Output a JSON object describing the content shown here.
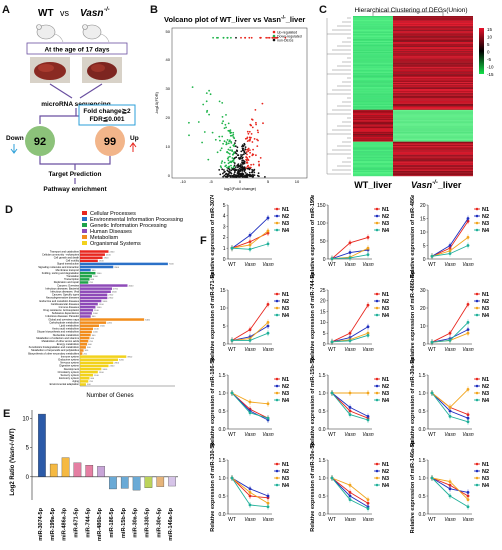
{
  "panels": {
    "A": {
      "label": "A",
      "group_wt": "WT",
      "vs": "vs",
      "group_ko": "Vasn",
      "group_ko_sup": "-/-",
      "age_text": "At the age of 17 days",
      "sequencing": "microRNA sequencing",
      "criteria_line1": "Fold change≧2",
      "criteria_line2": "FDR≦0.001",
      "down_label": "Down",
      "up_label": "Up",
      "down_count": "92",
      "up_count": "99",
      "target": "Target Prediction",
      "pathway": "Pathway enrichment"
    },
    "B": {
      "label": "B",
      "title": "Volcano plot of WT_liver vs Vasn",
      "title_sup": "-/-",
      "title_suffix": "_liver",
      "ylabel": "-log10(FDR)",
      "xlabel": "log2(Fold change)",
      "legend": [
        "Up-regulated",
        "Down-regulated",
        "non-DEGs"
      ],
      "xticks": [
        "-10",
        "-5",
        "0",
        "5",
        "10"
      ],
      "yticks": [
        "0",
        "10",
        "20",
        "30",
        "40",
        "50"
      ]
    },
    "C": {
      "label": "C",
      "title": "Hierarchical Clustering of DEGs(Union)",
      "xlabel_wt": "WT_liver",
      "xlabel_ko": "Vasn",
      "xlabel_ko_sup": "-/-",
      "xlabel_ko_suffix": "_liver",
      "scale": [
        "15",
        "10",
        "5",
        "0",
        "-5",
        "-10",
        "-15"
      ]
    },
    "D": {
      "label": "D",
      "xlabel": "Number of Genes",
      "legend": [
        {
          "name": "Cellular Processes",
          "color": "#e8261e"
        },
        {
          "name": "Environmental Information Processing",
          "color": "#2b71c8"
        },
        {
          "name": "Genetic Information Processing",
          "color": "#1fa34a"
        },
        {
          "name": "Human Diseases",
          "color": "#8e4bb8"
        },
        {
          "name": "Metabolism",
          "color": "#f28d1c"
        },
        {
          "name": "Organismal Systems",
          "color": "#f2d21c"
        }
      ]
    },
    "E": {
      "label": "E",
      "ylabel": "Log2 Ratio (Vasn-/-/WT)",
      "yticks": [
        "-5",
        "0",
        "5",
        "10"
      ]
    },
    "F": {
      "label": "F",
      "legend": [
        "N1",
        "N2",
        "N3",
        "N4"
      ],
      "xcats": [
        "WT",
        "Vasn",
        "Vasn"
      ]
    }
  },
  "chart_data": [
    {
      "type": "bar",
      "panel": "E",
      "categories": [
        "miR-3074-5p",
        "miR-199a-5p",
        "miR-486a-3p",
        "miR-671-5p",
        "miR-744-5p",
        "miR-486b-5p",
        "miR-186-5p",
        "miR-15b-5p",
        "miR-30a-5p",
        "miR-330-5p",
        "miR-30e-5p",
        "miR-146a-5p"
      ],
      "values": [
        10.8,
        2.2,
        3.3,
        2.4,
        2.0,
        1.8,
        -2.1,
        -2.0,
        -2.3,
        -1.9,
        -1.7,
        -1.6
      ],
      "ylim": [
        -4,
        11.5
      ],
      "colors": [
        "#2b5aa8",
        "#f5b942",
        "#f5b942",
        "#e57fa3",
        "#e57fa3",
        "#c8a5d8",
        "#6aaad6",
        "#6aaad6",
        "#6aaad6",
        "#bcd35a",
        "#e6b47a",
        "#d6c4e8"
      ]
    },
    {
      "type": "line",
      "panel": "F",
      "subplots": [
        {
          "ylabel": "Relative expression of miR-3074-5p",
          "ylim": [
            0,
            5
          ],
          "yticks": [
            "0",
            "1",
            "2",
            "3",
            "4",
            "5"
          ],
          "series": [
            [
              1,
              1.6,
              2.4
            ],
            [
              1,
              2.2,
              3.8
            ],
            [
              1,
              1.3,
              2.6
            ],
            [
              1,
              0.9,
              1.4
            ]
          ]
        },
        {
          "ylabel": "Relative expression of miR-199a-5p",
          "ylim": [
            0,
            150
          ],
          "yticks": [
            "0",
            "50",
            "100",
            "150"
          ],
          "series": [
            [
              1,
              45,
              60
            ],
            [
              1,
              18,
              25
            ],
            [
              1,
              5,
              30
            ],
            [
              1,
              3,
              12
            ]
          ]
        },
        {
          "ylabel": "Relative expression of miR-486a-3p",
          "ylim": [
            0,
            20
          ],
          "yticks": [
            "0",
            "5",
            "10",
            "15",
            "20"
          ],
          "series": [
            [
              1,
              4,
              14
            ],
            [
              1,
              5,
              15
            ],
            [
              1,
              3,
              8
            ],
            [
              1,
              2,
              5
            ]
          ]
        },
        {
          "ylabel": "Relative expression of miR-671-5p",
          "ylim": [
            0,
            15
          ],
          "yticks": [
            "0",
            "5",
            "10",
            "15"
          ],
          "series": [
            [
              1,
              4,
              11
            ],
            [
              1,
              2,
              5
            ],
            [
              1,
              1.5,
              6
            ],
            [
              1,
              1,
              3
            ]
          ]
        },
        {
          "ylabel": "Relative expression of miR-744-5p",
          "ylim": [
            0,
            25
          ],
          "yticks": [
            "0",
            "5",
            "10",
            "15",
            "20",
            "25"
          ],
          "series": [
            [
              1,
              5,
              18
            ],
            [
              1,
              3,
              8
            ],
            [
              1,
              2,
              5
            ],
            [
              1,
              1.5,
              4
            ]
          ]
        },
        {
          "ylabel": "Relative expression of miR-486b-5p",
          "ylim": [
            0,
            30
          ],
          "yticks": [
            "0",
            "10",
            "20",
            "30"
          ],
          "series": [
            [
              1,
              6,
              22
            ],
            [
              1,
              3,
              8
            ],
            [
              1,
              2,
              6
            ],
            [
              1,
              2,
              12
            ]
          ]
        },
        {
          "ylabel": "Relative expression of miR-186-5p",
          "ylim": [
            0,
            1.5
          ],
          "yticks": [
            "0.0",
            "0.5",
            "1.0",
            "1.5"
          ],
          "series": [
            [
              1,
              0.55,
              0.3
            ],
            [
              1,
              0.5,
              0.25
            ],
            [
              1,
              0.75,
              0.7
            ],
            [
              1,
              0.45,
              0.3
            ]
          ]
        },
        {
          "ylabel": "Relative expression of miR-15b-5p",
          "ylim": [
            0,
            1.5
          ],
          "yticks": [
            "0.0",
            "0.5",
            "1.0",
            "1.5"
          ],
          "series": [
            [
              1,
              0.5,
              0.3
            ],
            [
              1,
              0.6,
              0.35
            ],
            [
              1,
              1.0,
              1.0
            ],
            [
              1,
              0.4,
              0.25
            ]
          ]
        },
        {
          "ylabel": "Relative expression of miR-30a-5p",
          "ylim": [
            0,
            1.5
          ],
          "yticks": [
            "0.0",
            "0.5",
            "1.0",
            "1.5"
          ],
          "series": [
            [
              1,
              0.6,
              0.4
            ],
            [
              1,
              0.5,
              0.3
            ],
            [
              1,
              0.6,
              1.1
            ],
            [
              1,
              0.35,
              0.2
            ]
          ]
        },
        {
          "ylabel": "Relative expression of miR-330-5p",
          "ylim": [
            0,
            1.5
          ],
          "yticks": [
            "0.0",
            "0.5",
            "1.0",
            "1.5"
          ],
          "series": [
            [
              1,
              0.5,
              0.45
            ],
            [
              1,
              0.7,
              0.5
            ],
            [
              1,
              0.6,
              0.3
            ],
            [
              1,
              0.25,
              0.2
            ]
          ]
        },
        {
          "ylabel": "Relative expression of miR-30e-5p",
          "ylim": [
            0,
            1.5
          ],
          "yticks": [
            "0.0",
            "0.5",
            "1.0",
            "1.5"
          ],
          "series": [
            [
              1,
              0.6,
              0.3
            ],
            [
              1,
              0.5,
              0.2
            ],
            [
              1,
              0.8,
              0.4
            ],
            [
              1,
              0.4,
              0.15
            ]
          ]
        },
        {
          "ylabel": "Relative expression of miR-146a-5p",
          "ylim": [
            0,
            1.5
          ],
          "yticks": [
            "0.0",
            "0.5",
            "1.0",
            "1.5"
          ],
          "series": [
            [
              1,
              0.8,
              0.5
            ],
            [
              1,
              0.7,
              0.6
            ],
            [
              1,
              0.9,
              0.4
            ],
            [
              1,
              0.5,
              0.2
            ]
          ]
        }
      ],
      "series_colors": [
        "#e8261e",
        "#1f2fbf",
        "#f2a51c",
        "#1fb09a"
      ]
    },
    {
      "type": "bar",
      "panel": "D",
      "orientation": "horizontal",
      "categories": [
        "Transport and catabolism",
        "Cellular community - eukaryotes",
        "Cell growth and death",
        "Cell motility",
        "Signal transduction",
        "Signaling molecules and interaction",
        "Membrane transport",
        "Folding, sorting and degradation",
        "Translation",
        "Transcription",
        "Replication and repair",
        "Cancers: Overview",
        "Infectious diseases: Bacterial",
        "Infectious diseases: Viral",
        "Cancers: Specific types",
        "Neurodegenerative diseases",
        "Endocrine and metabolic diseases",
        "Cardiovascular diseases",
        "Immune diseases",
        "Drug resistance: Antineoplastic",
        "Substance dependence",
        "Infectious diseases: Parasitic",
        "Global and overview maps",
        "Carbohydrate metabolism",
        "Lipid metabolism",
        "Amino acid metabolism",
        "Glycan biosynthesis and metabolism",
        "Nucleotide metabolism",
        "Metabolism of cofactors and vitamins",
        "Metabolism of other amino acids",
        "Energy metabolism",
        "Xenobiotics biodegradation and metabolism",
        "Metabolism of terpenoids and polyketides",
        "Biosynthesis of other secondary metabolites",
        "Immune system",
        "Endocrine system",
        "Nervous system",
        "Digestive system",
        "Development",
        "Circulatory system",
        "Sensory system",
        "Excretory system",
        "Aging",
        "Environmental adaptation"
      ],
      "values": [
        2400,
        2100,
        1900,
        1500,
        7400,
        2800,
        900,
        1300,
        1000,
        800,
        700,
        4000,
        2700,
        2600,
        2300,
        2300,
        1800,
        1500,
        1300,
        1100,
        1000,
        900,
        5400,
        2200,
        1600,
        1100,
        1000,
        900,
        800,
        700,
        600,
        500,
        300,
        200,
        3900,
        3200,
        2800,
        2400,
        1800,
        1500,
        1100,
        800,
        700,
        500
      ],
      "group": [
        0,
        0,
        0,
        0,
        1,
        1,
        1,
        2,
        2,
        2,
        2,
        3,
        3,
        3,
        3,
        3,
        3,
        3,
        3,
        3,
        3,
        3,
        4,
        4,
        4,
        4,
        4,
        4,
        4,
        4,
        4,
        4,
        4,
        4,
        5,
        5,
        5,
        5,
        5,
        5,
        5,
        5,
        5,
        5
      ],
      "xlim": [
        0,
        8000
      ]
    }
  ]
}
